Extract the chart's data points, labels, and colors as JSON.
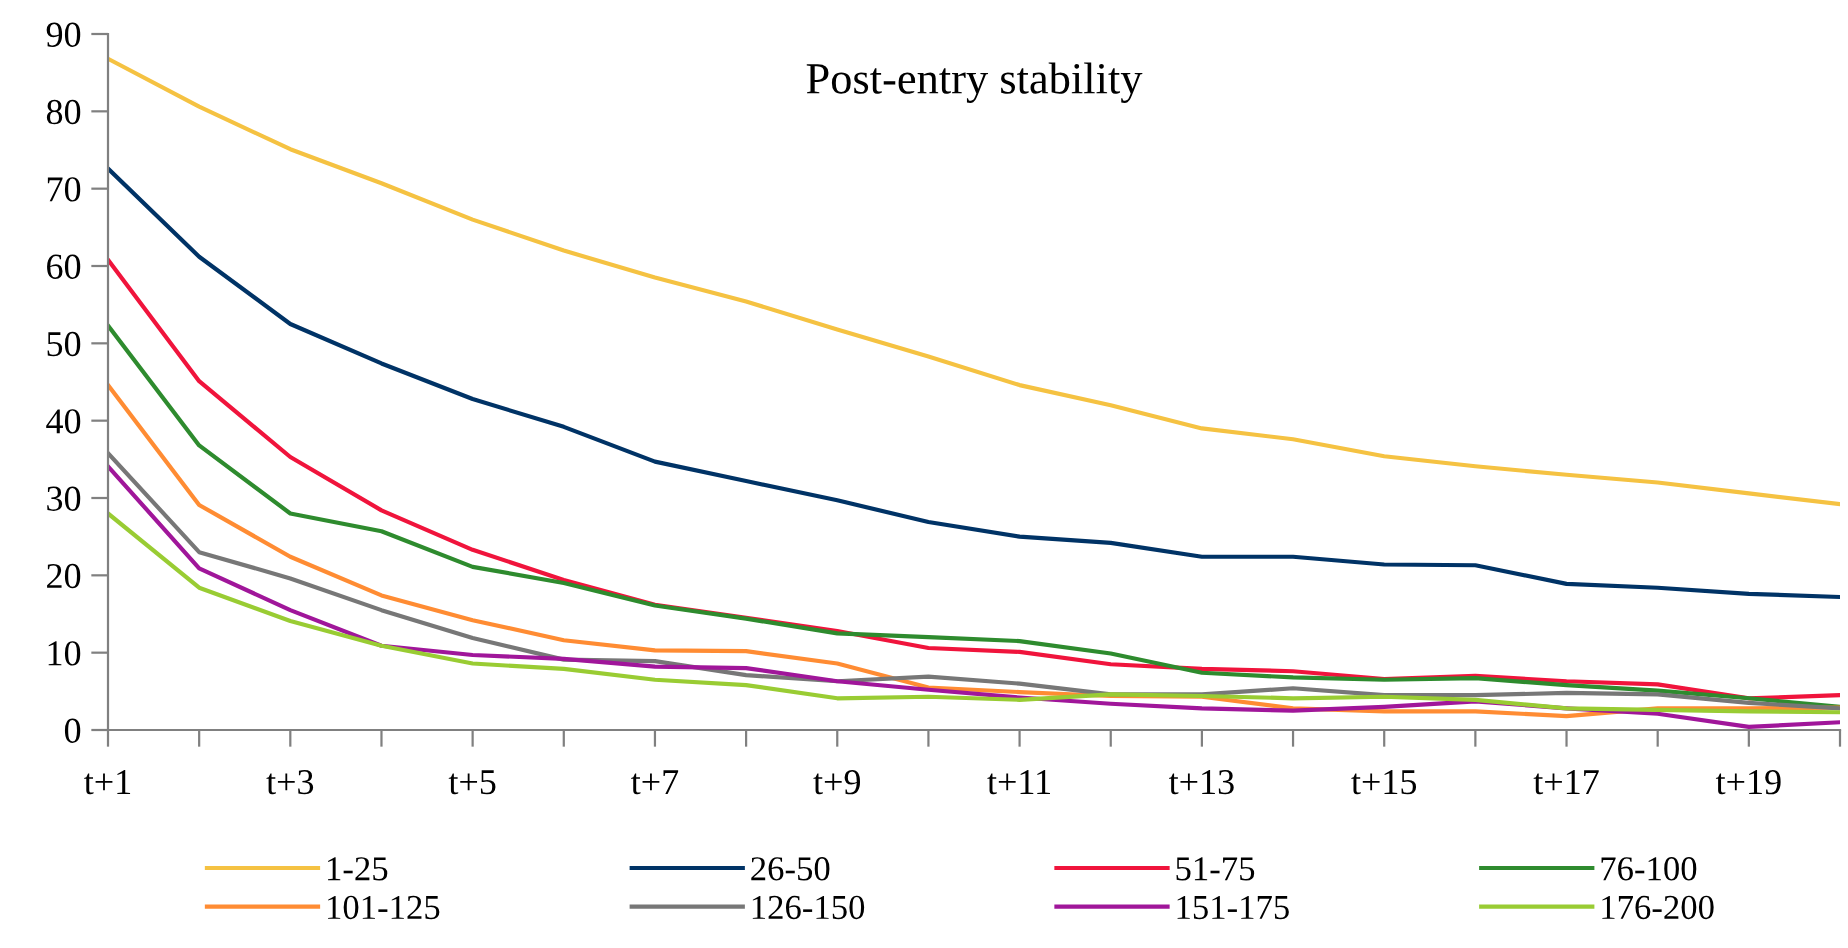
{
  "chart_data": {
    "type": "line",
    "title": "Post-entry stability",
    "categories": [
      "t+1",
      null,
      "t+3",
      null,
      "t+5",
      null,
      "t+7",
      null,
      "t+9",
      null,
      "t+11",
      null,
      "t+13",
      null,
      "t+15",
      null,
      "t+17",
      null,
      "t+19",
      null
    ],
    "ylim": [
      0,
      90
    ],
    "yticks": [
      0,
      10,
      20,
      30,
      40,
      50,
      60,
      70,
      80,
      90
    ],
    "grid": false,
    "legend": "bottom",
    "marker": "none",
    "line_style": "solid",
    "series": [
      {
        "name": "1-25",
        "color": "#f5c242",
        "values": [
          86.8,
          80.6,
          75.1,
          70.7,
          66.0,
          62.0,
          58.5,
          55.4,
          51.8,
          48.3,
          44.6,
          42.0,
          39.0,
          37.6,
          35.4,
          34.1,
          33.0,
          32.0,
          30.6,
          29.2
        ]
      },
      {
        "name": "26-50",
        "color": "#003366",
        "values": [
          72.6,
          61.2,
          52.5,
          47.4,
          42.8,
          39.2,
          34.7,
          32.2,
          29.7,
          26.9,
          25.0,
          24.2,
          22.4,
          22.4,
          21.4,
          21.3,
          18.9,
          18.4,
          17.6,
          17.2
        ]
      },
      {
        "name": "51-75",
        "color": "#f0143c",
        "values": [
          60.8,
          45.1,
          35.3,
          28.4,
          23.3,
          19.4,
          16.2,
          14.5,
          12.8,
          10.6,
          10.1,
          8.5,
          7.9,
          7.6,
          6.6,
          7.0,
          6.3,
          5.9,
          4.1,
          4.5
        ]
      },
      {
        "name": "76-100",
        "color": "#2e8b2e",
        "values": [
          52.3,
          36.8,
          28.0,
          25.7,
          21.1,
          19.0,
          16.1,
          14.4,
          12.5,
          12.0,
          11.5,
          9.9,
          7.4,
          6.8,
          6.5,
          6.7,
          5.8,
          5.1,
          4.1,
          3.0
        ]
      },
      {
        "name": "101-125",
        "color": "#ff8c33",
        "values": [
          44.6,
          29.1,
          22.4,
          17.4,
          14.2,
          11.6,
          10.3,
          10.2,
          8.6,
          5.5,
          4.9,
          4.4,
          4.3,
          2.8,
          2.4,
          2.4,
          1.8,
          2.8,
          2.8,
          2.9
        ]
      },
      {
        "name": "126-150",
        "color": "#777777",
        "values": [
          35.8,
          23.0,
          19.6,
          15.5,
          11.9,
          9.1,
          8.9,
          7.1,
          6.3,
          6.9,
          6.0,
          4.6,
          4.6,
          5.4,
          4.5,
          4.5,
          4.8,
          4.6,
          3.5,
          2.8
        ]
      },
      {
        "name": "151-175",
        "color": "#a0169a",
        "values": [
          34.1,
          20.9,
          15.5,
          10.9,
          9.7,
          9.2,
          8.2,
          8.0,
          6.3,
          5.2,
          4.2,
          3.4,
          2.8,
          2.5,
          3.0,
          3.7,
          2.8,
          2.1,
          0.4,
          1.0
        ]
      },
      {
        "name": "176-200",
        "color": "#99cc33",
        "values": [
          28.0,
          18.4,
          14.1,
          10.9,
          8.6,
          7.9,
          6.5,
          5.8,
          4.1,
          4.3,
          3.9,
          4.6,
          4.4,
          4.1,
          4.3,
          3.9,
          2.8,
          2.6,
          2.4,
          2.3
        ]
      }
    ]
  }
}
